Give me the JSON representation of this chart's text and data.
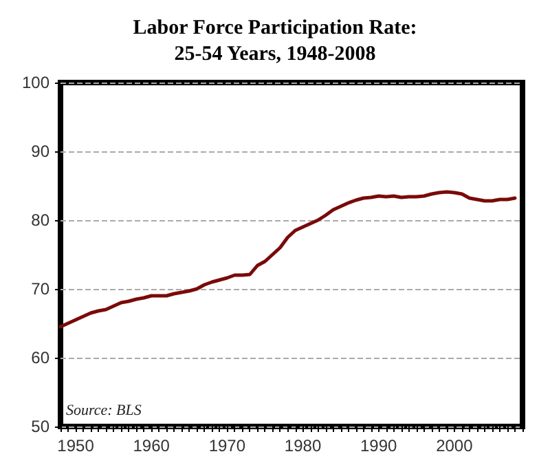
{
  "chart_data": {
    "type": "line",
    "title": "Labor Force Participation Rate:\n25-54 Years, 1948-2008",
    "annotations": [
      "Source: BLS"
    ],
    "x": [
      1948,
      1949,
      1950,
      1951,
      1952,
      1953,
      1954,
      1955,
      1956,
      1957,
      1958,
      1959,
      1960,
      1961,
      1962,
      1963,
      1964,
      1965,
      1966,
      1967,
      1968,
      1969,
      1970,
      1971,
      1972,
      1973,
      1974,
      1975,
      1976,
      1977,
      1978,
      1979,
      1980,
      1981,
      1982,
      1983,
      1984,
      1985,
      1986,
      1987,
      1988,
      1989,
      1990,
      1991,
      1992,
      1993,
      1994,
      1995,
      1996,
      1997,
      1998,
      1999,
      2000,
      2001,
      2002,
      2003,
      2004,
      2005,
      2006,
      2007,
      2008
    ],
    "series": [
      {
        "color": "#7a0a0a",
        "values": [
          64.5,
          65,
          65.5,
          66,
          66.5,
          66.8,
          67,
          67.5,
          68,
          68.2,
          68.5,
          68.7,
          69,
          69,
          69,
          69.3,
          69.5,
          69.7,
          70,
          70.6,
          71,
          71.3,
          71.6,
          72,
          72,
          72.1,
          73.4,
          74,
          75,
          76,
          77.5,
          78.5,
          79,
          79.5,
          80,
          80.7,
          81.5,
          82,
          82.5,
          82.9,
          83.2,
          83.3,
          83.5,
          83.4,
          83.5,
          83.3,
          83.4,
          83.4,
          83.5,
          83.8,
          84,
          84.1,
          84,
          83.8,
          83.2,
          83,
          82.8,
          82.8,
          83,
          83,
          83.2
        ]
      }
    ],
    "xlim": [
      1948,
      2009
    ],
    "xticks": [
      1950,
      1960,
      1970,
      1980,
      1990,
      2000
    ],
    "ylim": [
      50,
      100
    ],
    "yticks": [
      50,
      60,
      70,
      80,
      90,
      100
    ],
    "grid": "y",
    "marker": "none",
    "line_style": "solid"
  }
}
